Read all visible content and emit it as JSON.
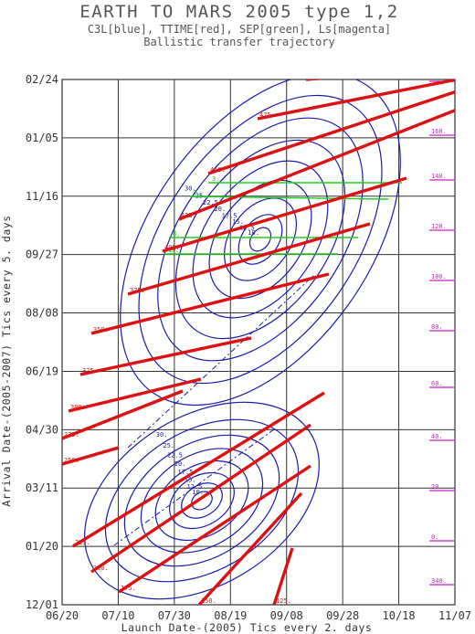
{
  "chart_data": {
    "type": "contour",
    "title": "EARTH TO MARS 2005   type 1,2",
    "subtitle": "C3L[blue], TTIME[red], SEP[green], Ls[magenta]",
    "subtitle2": "Ballistic transfer trajectory",
    "xlabel": "Launch Date-(2005) Tics every 2. days",
    "ylabel": "Arrival Date-(2005-2007) Tics every 5. days",
    "x_ticks": [
      "06/20",
      "07/10",
      "07/30",
      "08/19",
      "09/08",
      "09/28",
      "10/18",
      "11/07"
    ],
    "y_ticks": [
      "12/01",
      "01/20",
      "03/11",
      "04/30",
      "06/19",
      "08/08",
      "09/27",
      "11/16",
      "01/05",
      "02/24"
    ],
    "colors": {
      "c3l": "#1a1aaa",
      "ttime": "#dd1111",
      "sep": "#22cc22",
      "ls": "#cc22cc",
      "grid": "#333333"
    },
    "ttime_labels": [
      "500.",
      "475.",
      "450.",
      "425.",
      "400.",
      "375.",
      "350.",
      "325.",
      "300.",
      "275.",
      "250.",
      "225.",
      "200.",
      "175.",
      "150.",
      "125."
    ],
    "ls_labels": [
      "180.",
      "160.",
      "140.",
      "120.",
      "100.",
      "80.",
      "60.",
      "40.",
      "20.",
      "0.",
      "340."
    ],
    "c3l_labels": [
      "10.",
      "12.5",
      "15.",
      "17.5",
      "20.",
      "22.5",
      "25.",
      "30."
    ],
    "sep_labels": [
      "3.",
      "5.",
      "8.",
      "10."
    ]
  }
}
